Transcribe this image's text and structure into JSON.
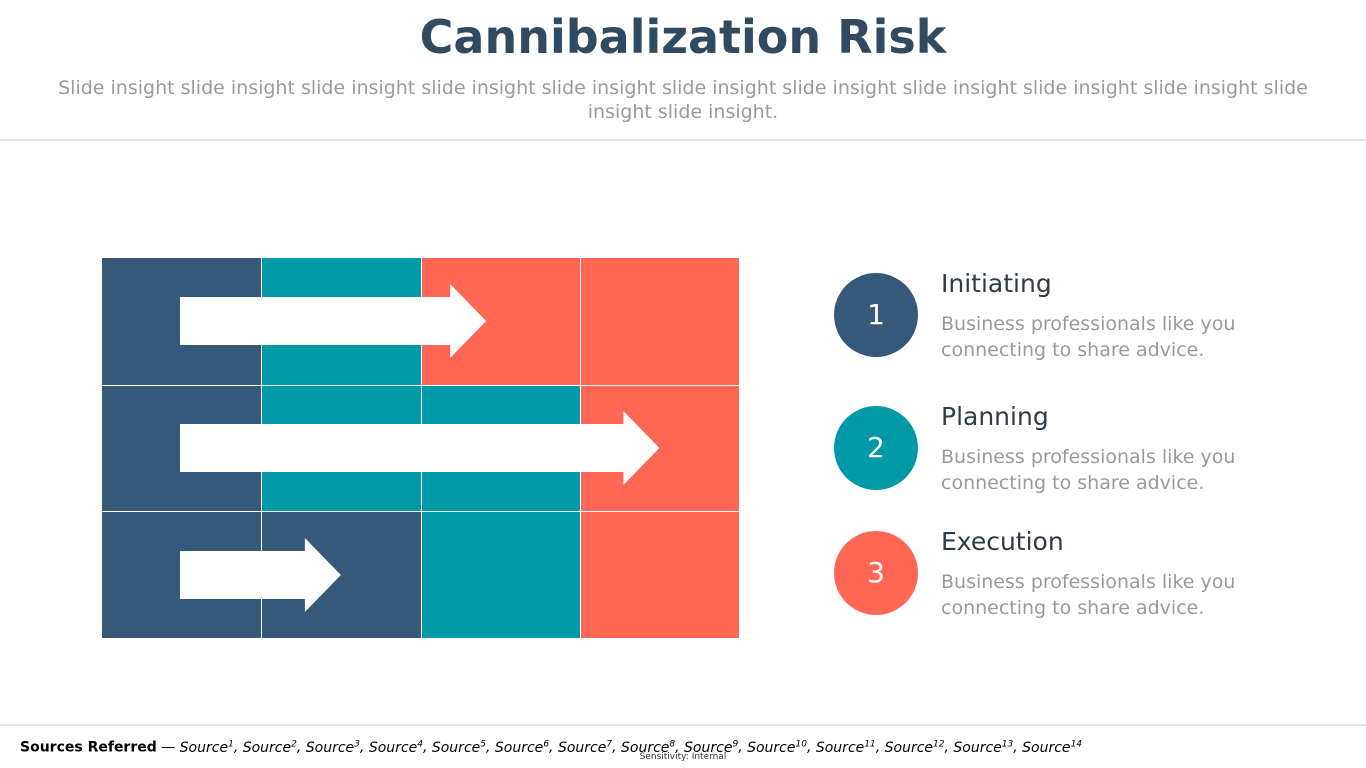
{
  "header": {
    "title": "Cannibalization Risk",
    "subtitle": "Slide insight slide insight slide insight slide insight slide insight slide insight slide insight slide insight slide insight slide insight slide insight slide insight."
  },
  "colors": {
    "navy": "#365879",
    "teal": "#0099a8",
    "coral": "#ff6654",
    "arrow": "#ffffff"
  },
  "matrix": {
    "columns": 4,
    "rows": [
      {
        "cells": [
          "navy",
          "teal",
          "coral",
          "coral"
        ],
        "arrow_columns": 2.5
      },
      {
        "cells": [
          "navy",
          "teal",
          "teal",
          "coral"
        ],
        "arrow_columns": 3.5
      },
      {
        "cells": [
          "navy",
          "navy",
          "teal",
          "coral"
        ],
        "arrow_columns": 1.5
      }
    ]
  },
  "steps": [
    {
      "number": "1",
      "heading": "Initiating",
      "description": "Business professionals like you connecting to share advice.",
      "color": "#365879"
    },
    {
      "number": "2",
      "heading": "Planning",
      "description": "Business professionals like you connecting to share advice.",
      "color": "#0099a8"
    },
    {
      "number": "3",
      "heading": "Execution",
      "description": "Business professionals like you connecting to share advice.",
      "color": "#ff6654"
    }
  ],
  "footer": {
    "sources_label": "Sources Referred",
    "separator": " — ",
    "sources": [
      {
        "text": "Source",
        "sup": "1"
      },
      {
        "text": "Source",
        "sup": "2"
      },
      {
        "text": "Source",
        "sup": "3"
      },
      {
        "text": "Source",
        "sup": "4"
      },
      {
        "text": "Source",
        "sup": "5"
      },
      {
        "text": "Source",
        "sup": "6"
      },
      {
        "text": "Source",
        "sup": "7"
      },
      {
        "text": "Source",
        "sup": "8"
      },
      {
        "text": "Source",
        "sup": "9"
      },
      {
        "text": "Source",
        "sup": "10"
      },
      {
        "text": "Source",
        "sup": "11"
      },
      {
        "text": "Source",
        "sup": "12"
      },
      {
        "text": "Source",
        "sup": "13"
      },
      {
        "text": "Source",
        "sup": "14"
      }
    ],
    "sensitivity": "Sensitivity: Internal"
  }
}
